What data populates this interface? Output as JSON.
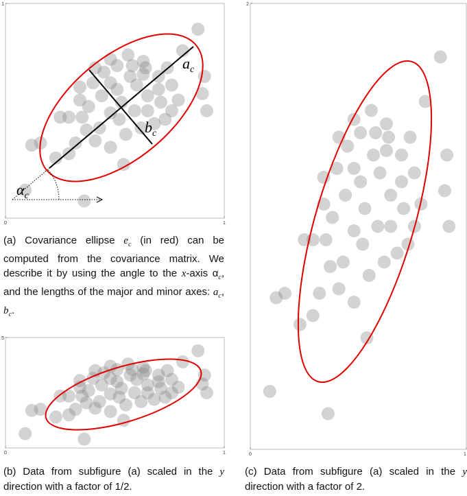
{
  "chart_data": [
    {
      "type": "scatter",
      "color": "#808080",
      "x": [
        0.88,
        0.81,
        0.91,
        0.9,
        0.92,
        0.12,
        0.16,
        0.09,
        0.36,
        0.23,
        0.25,
        0.29,
        0.34,
        0.34,
        0.38,
        0.41,
        0.45,
        0.48,
        0.56,
        0.63,
        0.64,
        0.57,
        0.6,
        0.65,
        0.7,
        0.74,
        0.76,
        0.79,
        0.71,
        0.68,
        0.62,
        0.55,
        0.52,
        0.48,
        0.43,
        0.37,
        0.32,
        0.29,
        0.48,
        0.54,
        0.59,
        0.51,
        0.53,
        0.44,
        0.4,
        0.65,
        0.73,
        0.76,
        0.63,
        0.58,
        0.51,
        0.35,
        0.41,
        0.7,
        0.48
      ],
      "y": [
        0.88,
        0.78,
        0.66,
        0.58,
        0.5,
        0.34,
        0.35,
        0.13,
        0.08,
        0.28,
        0.47,
        0.47,
        0.61,
        0.55,
        0.52,
        0.7,
        0.68,
        0.74,
        0.76,
        0.73,
        0.7,
        0.66,
        0.62,
        0.57,
        0.66,
        0.7,
        0.62,
        0.55,
        0.54,
        0.44,
        0.42,
        0.39,
        0.46,
        0.49,
        0.42,
        0.41,
        0.35,
        0.3,
        0.33,
        0.25,
        0.5,
        0.6,
        0.54,
        0.57,
        0.63,
        0.5,
        0.46,
        0.5,
        0.67,
        0.71,
        0.71,
        0.47,
        0.36,
        0.6,
        0.63
      ],
      "xlim": [
        0,
        1
      ],
      "xticks": [
        0,
        1
      ],
      "ylim": [
        0,
        1
      ],
      "yticks": [
        1
      ],
      "annotations": [
        {
          "symbol": "a",
          "sub": "c"
        },
        {
          "symbol": "b",
          "sub": "c"
        },
        {
          "symbol": "α",
          "sub": "c"
        }
      ]
    },
    {
      "type": "scatter",
      "color": "#808080",
      "x": [
        0.88,
        0.81,
        0.91,
        0.9,
        0.92,
        0.12,
        0.16,
        0.09,
        0.36,
        0.23,
        0.25,
        0.29,
        0.34,
        0.34,
        0.38,
        0.41,
        0.45,
        0.48,
        0.56,
        0.63,
        0.64,
        0.57,
        0.6,
        0.65,
        0.7,
        0.74,
        0.76,
        0.79,
        0.71,
        0.68,
        0.62,
        0.55,
        0.52,
        0.48,
        0.43,
        0.37,
        0.32,
        0.29,
        0.48,
        0.54,
        0.59,
        0.51,
        0.53,
        0.44,
        0.4,
        0.65,
        0.73,
        0.76,
        0.63,
        0.58,
        0.51,
        0.35,
        0.41,
        0.7,
        0.48
      ],
      "y": [
        0.44,
        0.39,
        0.33,
        0.29,
        0.25,
        0.17,
        0.175,
        0.065,
        0.04,
        0.14,
        0.235,
        0.235,
        0.305,
        0.275,
        0.26,
        0.35,
        0.34,
        0.37,
        0.38,
        0.365,
        0.35,
        0.33,
        0.31,
        0.285,
        0.33,
        0.35,
        0.31,
        0.275,
        0.27,
        0.22,
        0.21,
        0.195,
        0.23,
        0.245,
        0.21,
        0.205,
        0.175,
        0.15,
        0.165,
        0.125,
        0.25,
        0.3,
        0.27,
        0.285,
        0.315,
        0.25,
        0.23,
        0.25,
        0.335,
        0.355,
        0.355,
        0.235,
        0.18,
        0.3,
        0.315
      ],
      "xlim": [
        0,
        1
      ],
      "xticks": [
        0,
        1
      ],
      "ylim": [
        0,
        0.5
      ],
      "yticks": [
        0.5
      ]
    },
    {
      "type": "scatter",
      "color": "#808080",
      "x": [
        0.88,
        0.81,
        0.91,
        0.9,
        0.92,
        0.12,
        0.16,
        0.09,
        0.36,
        0.23,
        0.25,
        0.29,
        0.34,
        0.34,
        0.38,
        0.41,
        0.45,
        0.48,
        0.56,
        0.63,
        0.64,
        0.57,
        0.6,
        0.65,
        0.7,
        0.74,
        0.76,
        0.79,
        0.71,
        0.68,
        0.62,
        0.55,
        0.52,
        0.48,
        0.43,
        0.37,
        0.32,
        0.29,
        0.48,
        0.54,
        0.59,
        0.51,
        0.53,
        0.44,
        0.4,
        0.65,
        0.73,
        0.76,
        0.63,
        0.58,
        0.51,
        0.35,
        0.41,
        0.7,
        0.48
      ],
      "y": [
        1.76,
        1.56,
        1.32,
        1.16,
        1.0,
        0.68,
        0.7,
        0.26,
        0.16,
        0.56,
        0.94,
        0.94,
        1.22,
        1.1,
        1.04,
        1.4,
        1.36,
        1.48,
        1.52,
        1.46,
        1.4,
        1.32,
        1.24,
        1.14,
        1.32,
        1.4,
        1.24,
        1.1,
        1.08,
        0.88,
        0.84,
        0.78,
        0.92,
        0.98,
        0.84,
        0.82,
        0.7,
        0.6,
        0.66,
        0.5,
        1.0,
        1.2,
        1.08,
        1.14,
        1.26,
        1.0,
        0.92,
        1.0,
        1.34,
        1.42,
        1.42,
        0.94,
        0.72,
        1.2,
        1.26
      ],
      "xlim": [
        0,
        1
      ],
      "xticks": [
        0,
        1
      ],
      "ylim": [
        0,
        2
      ],
      "yticks": [
        2
      ]
    }
  ],
  "captions": [
    [
      {
        "t": "(a) Covariance ellipse "
      },
      {
        "m": "e"
      },
      {
        "s": "c"
      },
      {
        "t": " (in red) can be computed from the covariance matrix. We describe it by using the angle to the "
      },
      {
        "m": "x"
      },
      {
        "t": "-axis α"
      },
      {
        "s": "c"
      },
      {
        "t": ", and the lengths of the major and minor axes: "
      },
      {
        "m": "a"
      },
      {
        "s": "c"
      },
      {
        "t": ", "
      },
      {
        "m": "b"
      },
      {
        "s": "c"
      },
      {
        "t": "."
      }
    ],
    [
      {
        "t": "(b) Data from subfigure (a) scaled in the "
      },
      {
        "m": "y"
      },
      {
        "t": " direction with a factor of 1/2."
      }
    ],
    [
      {
        "t": "(c) Data from subfigure (a) scaled in the "
      },
      {
        "m": "y"
      },
      {
        "t": " direction with a factor of 2."
      }
    ]
  ]
}
